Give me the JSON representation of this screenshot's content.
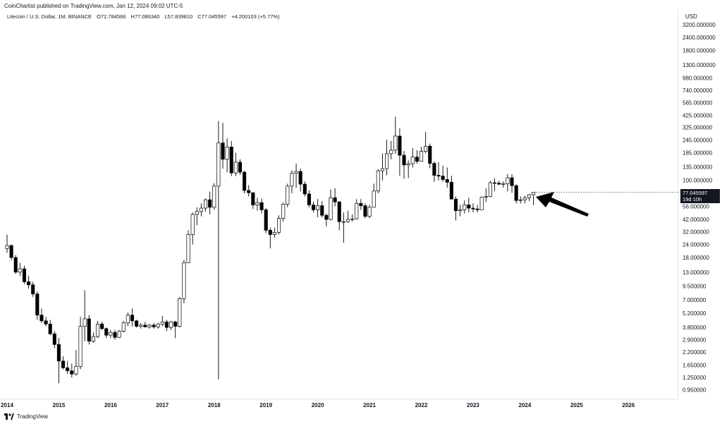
{
  "header": {
    "publisher": "CoinChartist published on TradingView.com, Jan 12, 2024 09:02 UTC-5",
    "symbol": "Litecoin / U.S. Dollar, 1M, BINANCE",
    "open": "O72.784566",
    "high": "H77.086340",
    "low": "L57.839810",
    "close": "C77.045597",
    "change": "+4.200103 (+5.77%)"
  },
  "axis": {
    "currency": "USD",
    "current_price": "77.045597",
    "countdown": "19d 10h"
  },
  "footer": {
    "brand": "TradingView"
  },
  "colors": {
    "up_body": "#ffffff",
    "down_body": "#000000",
    "wick": "#000000",
    "arrow": "#000000"
  },
  "chart_data": {
    "type": "candlestick",
    "timeframe": "1M",
    "scale": "log",
    "x_ticks": [
      "2014",
      "2015",
      "2016",
      "2017",
      "2018",
      "2019",
      "2020",
      "2021",
      "2022",
      "2023",
      "2024",
      "2025",
      "2026"
    ],
    "y_ticks": [
      "3200.000000",
      "2400.000000",
      "1800.000000",
      "1300.000000",
      "980.000000",
      "740.000000",
      "565.000000",
      "425.000000",
      "325.000000",
      "245.000000",
      "185.000000",
      "135.000000",
      "100.000000",
      "56.000000",
      "42.000000",
      "32.000000",
      "24.000000",
      "18.000000",
      "13.000000",
      "9.500000",
      "7.000000",
      "5.200000",
      "3.800000",
      "2.900000",
      "2.200000",
      "1.650000",
      "1.250000",
      "0.950000"
    ],
    "y_tick_values": [
      3200,
      2400,
      1800,
      1300,
      980,
      740,
      565,
      425,
      325,
      245,
      185,
      135,
      100,
      56,
      42,
      32,
      24,
      18,
      13,
      9.5,
      7,
      5.2,
      3.8,
      2.9,
      2.2,
      1.65,
      1.25,
      0.95
    ],
    "start": "2014-01",
    "candles": [
      {
        "o": 22.0,
        "h": 30.0,
        "l": 20.0,
        "c": 23.5
      },
      {
        "o": 23.5,
        "h": 24.0,
        "l": 17.0,
        "c": 18.0
      },
      {
        "o": 18.0,
        "h": 19.0,
        "l": 12.5,
        "c": 13.0
      },
      {
        "o": 13.0,
        "h": 16.0,
        "l": 12.0,
        "c": 14.0
      },
      {
        "o": 14.0,
        "h": 15.0,
        "l": 10.0,
        "c": 10.5
      },
      {
        "o": 10.5,
        "h": 12.0,
        "l": 9.0,
        "c": 9.8
      },
      {
        "o": 9.8,
        "h": 10.5,
        "l": 7.5,
        "c": 8.0
      },
      {
        "o": 8.0,
        "h": 8.5,
        "l": 4.5,
        "c": 5.0
      },
      {
        "o": 5.0,
        "h": 5.8,
        "l": 4.2,
        "c": 4.4
      },
      {
        "o": 4.4,
        "h": 4.8,
        "l": 3.9,
        "c": 4.1
      },
      {
        "o": 4.1,
        "h": 4.5,
        "l": 3.2,
        "c": 3.3
      },
      {
        "o": 3.3,
        "h": 3.5,
        "l": 2.4,
        "c": 2.6
      },
      {
        "o": 2.6,
        "h": 3.0,
        "l": 1.1,
        "c": 1.8
      },
      {
        "o": 1.8,
        "h": 2.0,
        "l": 1.5,
        "c": 1.55
      },
      {
        "o": 1.55,
        "h": 1.8,
        "l": 1.35,
        "c": 1.45
      },
      {
        "o": 1.45,
        "h": 1.7,
        "l": 1.25,
        "c": 1.35
      },
      {
        "o": 1.35,
        "h": 2.3,
        "l": 1.3,
        "c": 1.6
      },
      {
        "o": 1.6,
        "h": 4.8,
        "l": 1.5,
        "c": 3.9
      },
      {
        "o": 3.9,
        "h": 8.7,
        "l": 2.8,
        "c": 4.6
      },
      {
        "o": 4.6,
        "h": 5.0,
        "l": 2.6,
        "c": 2.8
      },
      {
        "o": 2.8,
        "h": 3.4,
        "l": 2.7,
        "c": 3.1
      },
      {
        "o": 3.1,
        "h": 4.4,
        "l": 3.0,
        "c": 4.1
      },
      {
        "o": 4.1,
        "h": 4.3,
        "l": 3.6,
        "c": 3.7
      },
      {
        "o": 3.7,
        "h": 3.8,
        "l": 3.0,
        "c": 3.2
      },
      {
        "o": 3.2,
        "h": 3.6,
        "l": 3.0,
        "c": 3.4
      },
      {
        "o": 3.4,
        "h": 3.6,
        "l": 2.9,
        "c": 3.05
      },
      {
        "o": 3.05,
        "h": 3.6,
        "l": 3.0,
        "c": 3.5
      },
      {
        "o": 3.5,
        "h": 4.4,
        "l": 3.4,
        "c": 4.2
      },
      {
        "o": 4.2,
        "h": 5.3,
        "l": 3.9,
        "c": 5.0
      },
      {
        "o": 5.0,
        "h": 5.8,
        "l": 3.9,
        "c": 4.4
      },
      {
        "o": 4.4,
        "h": 4.5,
        "l": 3.8,
        "c": 3.9
      },
      {
        "o": 3.9,
        "h": 4.2,
        "l": 3.7,
        "c": 4.0
      },
      {
        "o": 4.0,
        "h": 4.3,
        "l": 3.8,
        "c": 3.85
      },
      {
        "o": 3.85,
        "h": 4.1,
        "l": 3.7,
        "c": 4.0
      },
      {
        "o": 4.0,
        "h": 4.2,
        "l": 3.7,
        "c": 3.85
      },
      {
        "o": 3.85,
        "h": 4.2,
        "l": 3.7,
        "c": 4.1
      },
      {
        "o": 4.1,
        "h": 4.9,
        "l": 3.9,
        "c": 4.3
      },
      {
        "o": 4.3,
        "h": 4.5,
        "l": 3.5,
        "c": 3.8
      },
      {
        "o": 3.8,
        "h": 4.4,
        "l": 3.6,
        "c": 4.3
      },
      {
        "o": 4.3,
        "h": 4.4,
        "l": 3.0,
        "c": 3.9
      },
      {
        "o": 3.9,
        "h": 7.5,
        "l": 3.8,
        "c": 7.2
      },
      {
        "o": 7.2,
        "h": 17.0,
        "l": 6.5,
        "c": 16.0
      },
      {
        "o": 16.0,
        "h": 33.0,
        "l": 16.0,
        "c": 30.0
      },
      {
        "o": 30.0,
        "h": 49.0,
        "l": 24.0,
        "c": 47.0
      },
      {
        "o": 47.0,
        "h": 55.0,
        "l": 37.0,
        "c": 50.0
      },
      {
        "o": 50.0,
        "h": 60.0,
        "l": 45.0,
        "c": 54.0
      },
      {
        "o": 54.0,
        "h": 67.0,
        "l": 50.0,
        "c": 65.0
      },
      {
        "o": 65.0,
        "h": 78.0,
        "l": 47.0,
        "c": 55.0
      },
      {
        "o": 55.0,
        "h": 94.0,
        "l": 52.0,
        "c": 88.0
      },
      {
        "o": 88.0,
        "h": 375.0,
        "l": 1.2,
        "c": 230.0
      },
      {
        "o": 230.0,
        "h": 360.0,
        "l": 130.0,
        "c": 160.0
      },
      {
        "o": 160.0,
        "h": 255.0,
        "l": 120.0,
        "c": 210.0
      },
      {
        "o": 210.0,
        "h": 240.0,
        "l": 110.0,
        "c": 118.0
      },
      {
        "o": 118.0,
        "h": 185.0,
        "l": 110.0,
        "c": 150.0
      },
      {
        "o": 150.0,
        "h": 160.0,
        "l": 113.0,
        "c": 120.0
      },
      {
        "o": 120.0,
        "h": 124.0,
        "l": 75.0,
        "c": 80.0
      },
      {
        "o": 80.0,
        "h": 90.0,
        "l": 70.0,
        "c": 76.0
      },
      {
        "o": 76.0,
        "h": 77.0,
        "l": 53.0,
        "c": 58.0
      },
      {
        "o": 58.0,
        "h": 68.0,
        "l": 51.0,
        "c": 61.0
      },
      {
        "o": 61.0,
        "h": 67.0,
        "l": 48.0,
        "c": 52.0
      },
      {
        "o": 52.0,
        "h": 54.0,
        "l": 31.0,
        "c": 33.0
      },
      {
        "o": 33.0,
        "h": 35.0,
        "l": 22.0,
        "c": 30.0
      },
      {
        "o": 30.0,
        "h": 35.0,
        "l": 28.0,
        "c": 31.5
      },
      {
        "o": 31.5,
        "h": 46.0,
        "l": 30.0,
        "c": 43.0
      },
      {
        "o": 43.0,
        "h": 61.0,
        "l": 40.0,
        "c": 59.0
      },
      {
        "o": 59.0,
        "h": 93.0,
        "l": 55.0,
        "c": 88.0
      },
      {
        "o": 88.0,
        "h": 125.0,
        "l": 75.0,
        "c": 117.0
      },
      {
        "o": 117.0,
        "h": 146.0,
        "l": 85.0,
        "c": 122.0
      },
      {
        "o": 122.0,
        "h": 130.0,
        "l": 78.0,
        "c": 92.0
      },
      {
        "o": 92.0,
        "h": 98.0,
        "l": 70.0,
        "c": 74.0
      },
      {
        "o": 74.0,
        "h": 80.0,
        "l": 55.0,
        "c": 58.0
      },
      {
        "o": 58.0,
        "h": 62.0,
        "l": 49.0,
        "c": 52.0
      },
      {
        "o": 52.0,
        "h": 66.0,
        "l": 44.0,
        "c": 57.0
      },
      {
        "o": 57.0,
        "h": 63.0,
        "l": 44.0,
        "c": 46.0
      },
      {
        "o": 46.0,
        "h": 48.0,
        "l": 36.0,
        "c": 42.0
      },
      {
        "o": 42.0,
        "h": 82.0,
        "l": 41.0,
        "c": 68.0
      },
      {
        "o": 68.0,
        "h": 84.0,
        "l": 56.0,
        "c": 62.0
      },
      {
        "o": 62.0,
        "h": 63.0,
        "l": 33.0,
        "c": 40.0
      },
      {
        "o": 40.0,
        "h": 49.0,
        "l": 25.0,
        "c": 40.0
      },
      {
        "o": 40.0,
        "h": 51.0,
        "l": 39.0,
        "c": 42.0
      },
      {
        "o": 42.0,
        "h": 47.0,
        "l": 40.0,
        "c": 42.5
      },
      {
        "o": 42.5,
        "h": 66.0,
        "l": 42.0,
        "c": 60.0
      },
      {
        "o": 60.0,
        "h": 66.0,
        "l": 52.0,
        "c": 57.0
      },
      {
        "o": 57.0,
        "h": 60.0,
        "l": 43.0,
        "c": 45.0
      },
      {
        "o": 45.0,
        "h": 58.0,
        "l": 43.0,
        "c": 55.0
      },
      {
        "o": 55.0,
        "h": 93.0,
        "l": 55.0,
        "c": 79.0
      },
      {
        "o": 79.0,
        "h": 128.0,
        "l": 75.0,
        "c": 124.0
      },
      {
        "o": 124.0,
        "h": 182.0,
        "l": 100.0,
        "c": 130.0
      },
      {
        "o": 130.0,
        "h": 247.0,
        "l": 112.0,
        "c": 181.0
      },
      {
        "o": 181.0,
        "h": 240.0,
        "l": 160.0,
        "c": 196.0
      },
      {
        "o": 196.0,
        "h": 413.0,
        "l": 180.0,
        "c": 268.0
      },
      {
        "o": 268.0,
        "h": 320.0,
        "l": 111.0,
        "c": 175.0
      },
      {
        "o": 175.0,
        "h": 192.0,
        "l": 104.0,
        "c": 141.0
      },
      {
        "o": 141.0,
        "h": 156.0,
        "l": 105.0,
        "c": 145.0
      },
      {
        "o": 145.0,
        "h": 205.0,
        "l": 133.0,
        "c": 168.0
      },
      {
        "o": 168.0,
        "h": 196.0,
        "l": 145.0,
        "c": 153.0
      },
      {
        "o": 153.0,
        "h": 211.0,
        "l": 153.0,
        "c": 191.0
      },
      {
        "o": 191.0,
        "h": 294.0,
        "l": 183.0,
        "c": 214.0
      },
      {
        "o": 214.0,
        "h": 227.0,
        "l": 131.0,
        "c": 146.0
      },
      {
        "o": 146.0,
        "h": 153.0,
        "l": 97.0,
        "c": 112.0
      },
      {
        "o": 112.0,
        "h": 150.0,
        "l": 100.0,
        "c": 110.0
      },
      {
        "o": 110.0,
        "h": 139.0,
        "l": 97.0,
        "c": 102.0
      },
      {
        "o": 102.0,
        "h": 133.0,
        "l": 85.0,
        "c": 96.0
      },
      {
        "o": 96.0,
        "h": 111.0,
        "l": 66.0,
        "c": 66.0
      },
      {
        "o": 66.0,
        "h": 70.0,
        "l": 41.0,
        "c": 51.0
      },
      {
        "o": 51.0,
        "h": 58.0,
        "l": 45.0,
        "c": 52.0
      },
      {
        "o": 52.0,
        "h": 64.0,
        "l": 48.0,
        "c": 58.0
      },
      {
        "o": 58.0,
        "h": 68.0,
        "l": 49.0,
        "c": 54.0
      },
      {
        "o": 54.0,
        "h": 60.0,
        "l": 49.0,
        "c": 53.0
      },
      {
        "o": 53.0,
        "h": 58.0,
        "l": 49.0,
        "c": 52.0
      },
      {
        "o": 52.0,
        "h": 70.0,
        "l": 52.0,
        "c": 69.0
      },
      {
        "o": 69.0,
        "h": 84.0,
        "l": 62.0,
        "c": 70.0
      },
      {
        "o": 70.0,
        "h": 99.0,
        "l": 69.0,
        "c": 95.0
      },
      {
        "o": 95.0,
        "h": 105.0,
        "l": 79.0,
        "c": 94.0
      },
      {
        "o": 94.0,
        "h": 99.0,
        "l": 90.0,
        "c": 92.0
      },
      {
        "o": 92.0,
        "h": 98.0,
        "l": 85.0,
        "c": 93.0
      },
      {
        "o": 93.0,
        "h": 115.0,
        "l": 78.0,
        "c": 106.0
      },
      {
        "o": 106.0,
        "h": 115.0,
        "l": 76.0,
        "c": 89.0
      },
      {
        "o": 89.0,
        "h": 92.0,
        "l": 60.0,
        "c": 64.0
      },
      {
        "o": 64.0,
        "h": 70.0,
        "l": 60.0,
        "c": 65.0
      },
      {
        "o": 65.0,
        "h": 71.0,
        "l": 60.0,
        "c": 68.0
      },
      {
        "o": 68.0,
        "h": 74.0,
        "l": 63.0,
        "c": 72.8
      },
      {
        "o": 72.784566,
        "h": 77.08634,
        "l": 57.83981,
        "c": 77.045597
      }
    ],
    "annotation": "arrow pointing left at current candle"
  }
}
